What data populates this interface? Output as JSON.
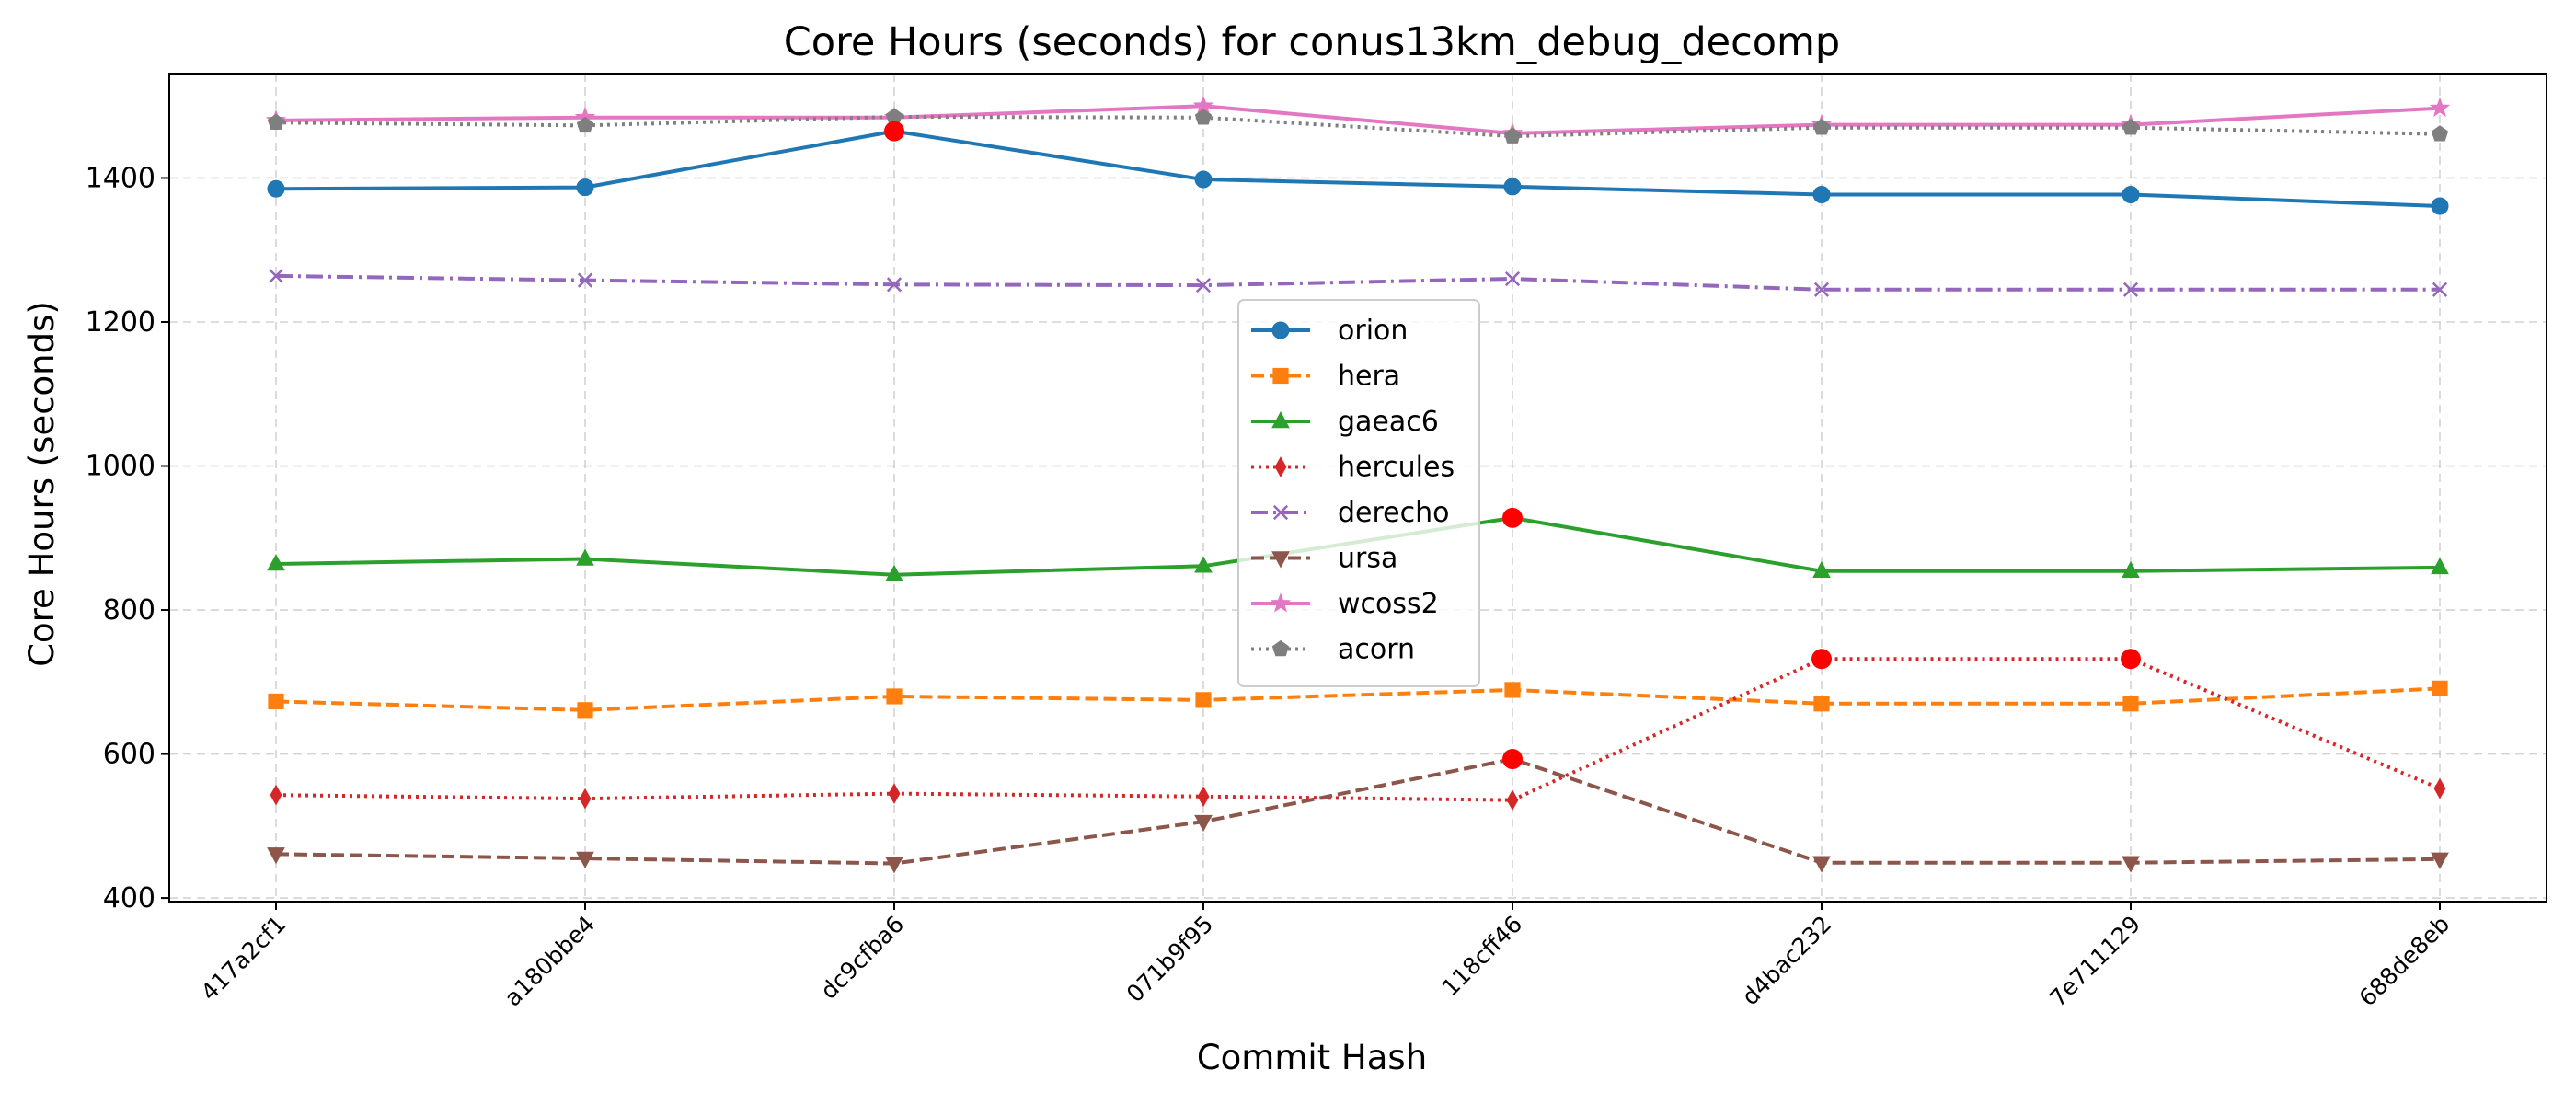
{
  "chart_data": {
    "type": "line",
    "title": "Core Hours (seconds) for conus13km_debug_decomp",
    "xlabel": "Commit Hash",
    "ylabel": "Core Hours (seconds)",
    "categories": [
      "417a2cf1",
      "a180bbe4",
      "dc9cfba6",
      "071b9f95",
      "118cff46",
      "d4bac232",
      "7e711129",
      "688de8eb"
    ],
    "ylim": [
      395,
      1545
    ],
    "yticks": [
      400,
      600,
      800,
      1000,
      1200,
      1400
    ],
    "grid": true,
    "legend_position": "center",
    "series": [
      {
        "name": "orion",
        "color": "#1f77b4",
        "dash": "solid",
        "marker": "circle",
        "values": [
          1385,
          1387,
          1465,
          1398,
          1388,
          1377,
          1377,
          1361
        ]
      },
      {
        "name": "hera",
        "color": "#ff7f0e",
        "dash": "dashed",
        "marker": "square",
        "values": [
          673,
          661,
          680,
          675,
          689,
          670,
          670,
          691
        ]
      },
      {
        "name": "gaeac6",
        "color": "#2ca02c",
        "dash": "solid",
        "marker": "triangle-up",
        "values": [
          864,
          871,
          849,
          861,
          928,
          854,
          854,
          859
        ]
      },
      {
        "name": "hercules",
        "color": "#d62728",
        "dash": "dotted",
        "marker": "thin-diamond",
        "values": [
          543,
          538,
          545,
          541,
          536,
          732,
          732,
          552
        ]
      },
      {
        "name": "derecho",
        "color": "#9467bd",
        "dash": "dashdot",
        "marker": "x",
        "values": [
          1264,
          1258,
          1252,
          1251,
          1260,
          1245,
          1245,
          1245
        ]
      },
      {
        "name": "ursa",
        "color": "#8c564b",
        "dash": "dashed",
        "marker": "triangle-down",
        "values": [
          461,
          455,
          448,
          506,
          593,
          449,
          449,
          454
        ]
      },
      {
        "name": "wcoss2",
        "color": "#e377c2",
        "dash": "solid",
        "marker": "star",
        "values": [
          1480,
          1484,
          1484,
          1500,
          1462,
          1474,
          1474,
          1497
        ]
      },
      {
        "name": "acorn",
        "color": "#7f7f7f",
        "dash": "dotted",
        "marker": "pentagon",
        "values": [
          1477,
          1473,
          1485,
          1484,
          1458,
          1470,
          1470,
          1461
        ]
      }
    ],
    "highlight_color": "#ff0000",
    "highlights": [
      {
        "series": "orion",
        "category": "dc9cfba6",
        "value": 1465
      },
      {
        "series": "gaeac6",
        "category": "118cff46",
        "value": 928
      },
      {
        "series": "ursa",
        "category": "118cff46",
        "value": 593
      },
      {
        "series": "hercules",
        "category": "d4bac232",
        "value": 732
      },
      {
        "series": "hercules",
        "category": "7e711129",
        "value": 732
      }
    ]
  }
}
